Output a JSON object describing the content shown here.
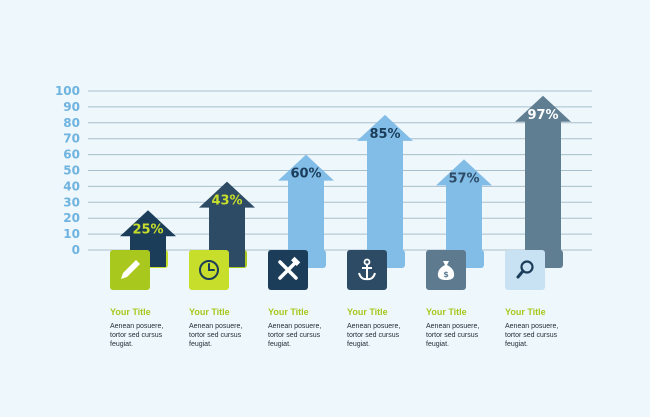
{
  "colors": {
    "background": "#eef7fb",
    "gridline": "#a9bfcc",
    "axis_label": "#6fb3e0",
    "caption_title": "#a8c81e",
    "caption_text": "#1f2a33",
    "icon_glyph": "#ffffff"
  },
  "chart_data": {
    "type": "bar",
    "ylim": [
      0,
      100
    ],
    "yticks": [
      "0",
      "10",
      "20",
      "30",
      "40",
      "50",
      "60",
      "70",
      "80",
      "90",
      "100"
    ],
    "grid": true,
    "categories": [
      "Your Title",
      "Your Title",
      "Your Title",
      "Your Title",
      "Your Title",
      "Your Title"
    ],
    "values": [
      25,
      43,
      60,
      85,
      57,
      97
    ],
    "value_labels": [
      "25%",
      "43%",
      "60%",
      "85%",
      "57%",
      "97%"
    ],
    "bars": [
      {
        "value": 25,
        "label": "25%",
        "arrow_color": "#1b3d59",
        "label_color": "#c7de2a",
        "icon": "pencil-icon",
        "tile_color": "#a8c81e",
        "tab_color": "#c7de2a"
      },
      {
        "value": 43,
        "label": "43%",
        "arrow_color": "#2d4b65",
        "label_color": "#c7de2a",
        "icon": "clock-icon",
        "tile_color": "#c7de2a",
        "tab_color": "#a8c81e"
      },
      {
        "value": 60,
        "label": "60%",
        "arrow_color": "#82bde8",
        "label_color": "#1b3d59",
        "icon": "tools-icon",
        "tile_color": "#1b3d59",
        "tab_color": "#82bde8"
      },
      {
        "value": 85,
        "label": "85%",
        "arrow_color": "#82bde8",
        "label_color": "#1b3d59",
        "icon": "anchor-icon",
        "tile_color": "#2d4b65",
        "tab_color": "#82bde8"
      },
      {
        "value": 57,
        "label": "57%",
        "arrow_color": "#82bde8",
        "label_color": "#2d4b65",
        "icon": "money-bag-icon",
        "tile_color": "#5e7a8f",
        "tab_color": "#82bde8"
      },
      {
        "value": 97,
        "label": "97%",
        "arrow_color": "#607e92",
        "label_color": "#ffffff",
        "icon": "search-icon",
        "tile_color": "#c9e2f3",
        "tab_color": "#607e92"
      }
    ]
  },
  "captions": [
    {
      "title": "Your Title",
      "lines": [
        "Aenean posuere,",
        "tortor sed cursus",
        "feugiat."
      ]
    },
    {
      "title": "Your Title",
      "lines": [
        "Aenean posuere,",
        "tortor sed cursus",
        "feugiat."
      ]
    },
    {
      "title": "Your Title",
      "lines": [
        "Aenean posuere,",
        "tortor sed cursus",
        "feugiat."
      ]
    },
    {
      "title": "Your Title",
      "lines": [
        "Aenean posuere,",
        "tortor sed cursus",
        "feugiat."
      ]
    },
    {
      "title": "Your Title",
      "lines": [
        "Aenean posuere,",
        "tortor sed cursus",
        "feugiat."
      ]
    },
    {
      "title": "Your Title",
      "lines": [
        "Aenean posuere,",
        "tortor sed cursus",
        "feugiat."
      ]
    }
  ]
}
